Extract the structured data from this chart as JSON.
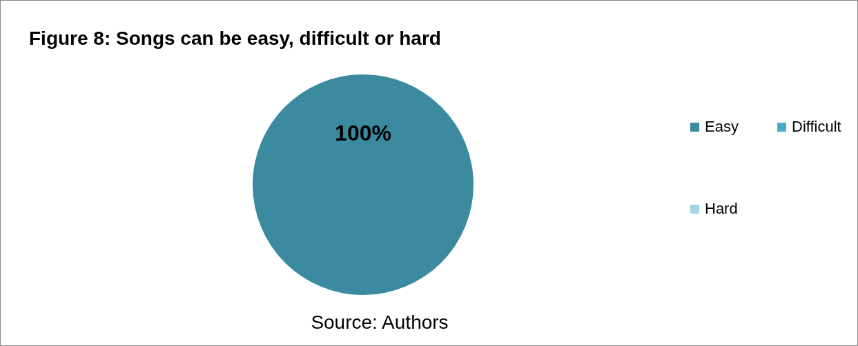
{
  "chart_data": {
    "type": "pie",
    "title": "Figure 8: Songs can be easy, difficult or hard",
    "categories": [
      "Easy",
      "Difficult",
      "Hard"
    ],
    "values": [
      100,
      0,
      0
    ],
    "colors": [
      "#3b8aa0",
      "#4bacc6",
      "#a5d5e2"
    ],
    "value_labels": [
      "100%",
      null,
      null
    ],
    "legend": "right",
    "annotations": [
      "Source: Authors"
    ]
  }
}
